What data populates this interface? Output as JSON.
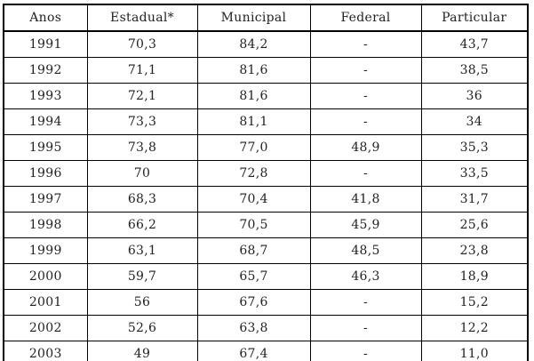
{
  "table": {
    "headers": [
      "Anos",
      "Estadual*",
      "Municipal",
      "Federal",
      "Particular"
    ],
    "rows": [
      [
        "1991",
        "70,3",
        "84,2",
        "-",
        "43,7"
      ],
      [
        "1992",
        "71,1",
        "81,6",
        "-",
        "38,5"
      ],
      [
        "1993",
        "72,1",
        "81,6",
        "-",
        "36"
      ],
      [
        "1994",
        "73,3",
        "81,1",
        "-",
        "34"
      ],
      [
        "1995",
        "73,8",
        "77,0",
        "48,9",
        "35,3"
      ],
      [
        "1996",
        "70",
        "72,8",
        "-",
        "33,5"
      ],
      [
        "1997",
        "68,3",
        "70,4",
        "41,8",
        "31,7"
      ],
      [
        "1998",
        "66,2",
        "70,5",
        "45,9",
        "25,6"
      ],
      [
        "1999",
        "63,1",
        "68,7",
        "48,5",
        "23,8"
      ],
      [
        "2000",
        "59,7",
        "65,7",
        "46,3",
        "18,9"
      ],
      [
        "2001",
        "56",
        "67,6",
        "-",
        "15,2"
      ],
      [
        "2002",
        "52,6",
        "63,8",
        "-",
        "12,2"
      ],
      [
        "2003",
        "49",
        "67,4",
        "-",
        "11,0"
      ]
    ]
  },
  "colors": {
    "border": "#000000",
    "text": "#222222",
    "background": "#ffffff"
  }
}
